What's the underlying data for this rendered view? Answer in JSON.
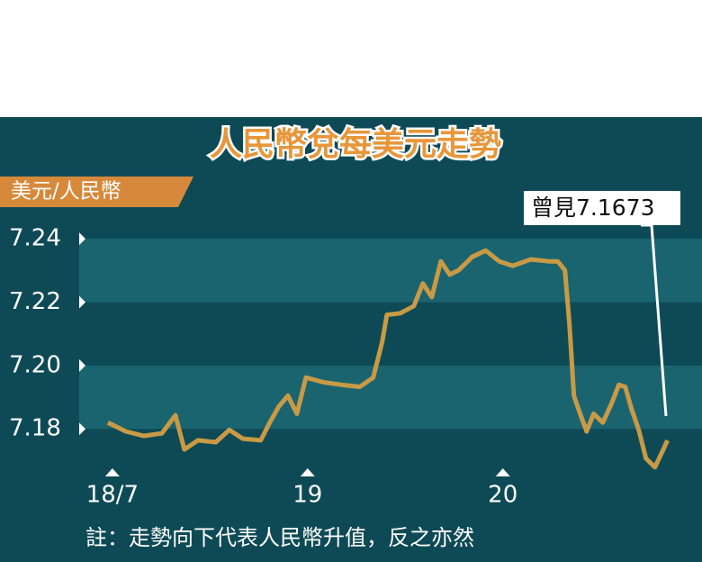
{
  "chart_data": {
    "type": "line",
    "title": "人民幣兌每美元走勢",
    "y_label": "美元/人民幣",
    "annotation": "曾見7.1673",
    "note": "註：走勢向下代表人民幣升值，反之亦然",
    "color": "#c99a45",
    "x": [
      -0.023,
      0.069,
      0.161,
      0.253,
      0.323,
      0.369,
      0.438,
      0.53,
      0.599,
      0.668,
      0.76,
      0.806,
      0.853,
      0.899,
      0.945,
      0.991,
      1.083,
      1.175,
      1.267,
      1.336,
      1.382,
      1.406,
      1.475,
      1.544,
      1.59,
      1.636,
      1.682,
      1.728,
      1.774,
      1.843,
      1.912,
      1.982,
      2.051,
      2.143,
      2.235,
      2.281,
      2.318,
      2.341,
      2.364,
      2.396,
      2.429,
      2.465,
      2.512,
      2.558,
      2.594,
      2.627,
      2.659,
      2.696,
      2.733,
      2.779,
      2.811,
      2.843
    ],
    "values": [
      7.182,
      7.1792,
      7.1778,
      7.1786,
      7.1843,
      7.1735,
      7.1764,
      7.1758,
      7.1797,
      7.1769,
      7.1764,
      7.182,
      7.1871,
      7.1905,
      7.1848,
      7.1962,
      7.1947,
      7.1939,
      7.1933,
      7.1962,
      7.2075,
      7.216,
      7.2165,
      7.2188,
      7.2259,
      7.2216,
      7.2329,
      7.2287,
      7.2301,
      7.2343,
      7.2363,
      7.2329,
      7.2315,
      7.2335,
      7.2329,
      7.2329,
      7.2301,
      7.2131,
      7.1905,
      7.1848,
      7.1792,
      7.1848,
      7.182,
      7.1882,
      7.1939,
      7.1933,
      7.1863,
      7.1797,
      7.1707,
      7.1679,
      7.1721,
      7.1764
    ],
    "xlim": [
      -0.17,
      3.02
    ],
    "xticks": [
      {
        "value": 0,
        "label": "18/7"
      },
      {
        "value": 1,
        "label": "19"
      },
      {
        "value": 2,
        "label": "20"
      }
    ],
    "ylim": [
      7.165,
      7.25
    ],
    "yticks": [
      7.24,
      7.22,
      {
        "value": 7.2,
        "label": "7.20"
      },
      7.18
    ]
  }
}
